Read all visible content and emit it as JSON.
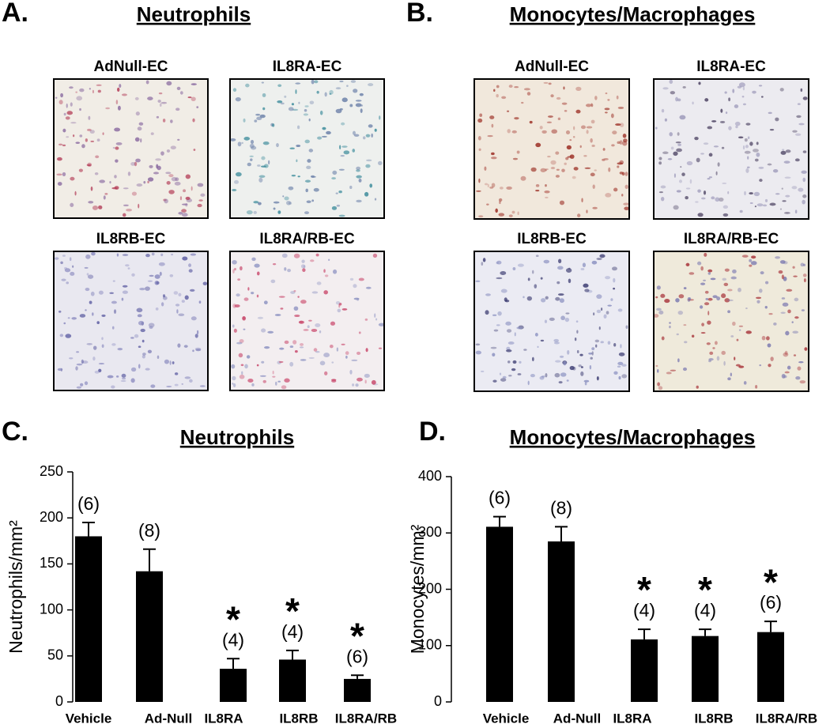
{
  "panels": [
    {
      "letter": "A.",
      "title": "Neutrophils",
      "images": [
        "AdNull-EC",
        "IL8RA-EC",
        "IL8RB-EC",
        "IL8RA/RB-EC"
      ]
    },
    {
      "letter": "B.",
      "title": "Monocytes/Macrophages",
      "images": [
        "AdNull-EC",
        "IL8RA-EC",
        "IL8RB-EC",
        "IL8RA/RB-EC"
      ]
    }
  ],
  "chart_data": [
    {
      "type": "bar",
      "panel_label": "C.",
      "title": "Neutrophils",
      "y_label": "Neutrophils/mm²",
      "categories": [
        "Vehicle",
        "Ad-Null",
        "IL8RA",
        "IL8RB",
        "IL8RA/RB"
      ],
      "values": [
        180,
        142,
        36,
        46,
        25
      ],
      "errors": [
        15,
        24,
        11,
        10,
        4
      ],
      "n_labels": [
        "(6)",
        "(8)",
        "(4)",
        "(4)",
        "(6)"
      ],
      "significance": [
        null,
        null,
        "*",
        "*",
        "*"
      ],
      "color": "#000000",
      "ylim": [
        0,
        250
      ],
      "yticks": [
        0,
        50,
        100,
        150,
        200,
        250
      ]
    },
    {
      "type": "bar",
      "panel_label": "D.",
      "title": "Monocytes/Macrophages",
      "y_label": "Monocytes/mm²",
      "categories": [
        "Vehicle",
        "Ad-Null",
        "IL8RA",
        "IL8RB",
        "IL8RA/RB"
      ],
      "values": [
        311,
        285,
        111,
        117,
        124
      ],
      "errors": [
        18,
        26,
        18,
        12,
        19
      ],
      "n_labels": [
        "(6)",
        "(8)",
        "(4)",
        "(4)",
        "(6)"
      ],
      "significance": [
        null,
        null,
        "*",
        "*",
        "*"
      ],
      "color": "#000000",
      "ylim": [
        0,
        400
      ],
      "yticks": [
        0,
        100,
        200,
        300,
        400
      ]
    }
  ]
}
